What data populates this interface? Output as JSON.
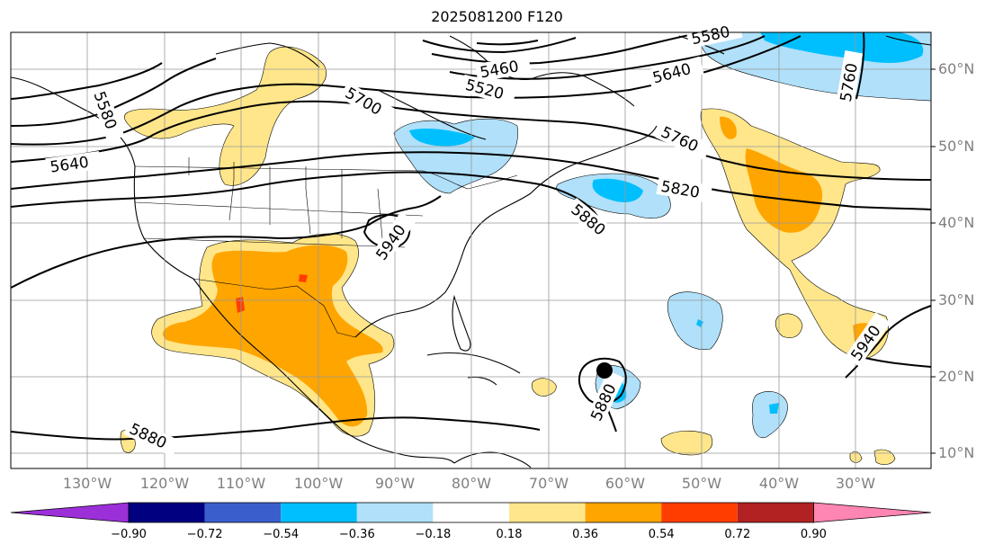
{
  "title": "2025081200 F120",
  "map": {
    "lon_range": [
      -140,
      20
    ],
    "lat_range": [
      8,
      65
    ],
    "lat_ticks": [
      {
        "value": 10,
        "label": "10°N"
      },
      {
        "value": 20,
        "label": "20°N"
      },
      {
        "value": 30,
        "label": "30°N"
      },
      {
        "value": 40,
        "label": "40°N"
      },
      {
        "value": 50,
        "label": "50°N"
      },
      {
        "value": 60,
        "label": "60°N"
      }
    ],
    "lon_ticks": [
      {
        "value": -130,
        "label": "130°W"
      },
      {
        "value": -120,
        "label": "120°W"
      },
      {
        "value": -110,
        "label": "110°W"
      },
      {
        "value": -100,
        "label": "100°W"
      },
      {
        "value": -90,
        "label": "90°W"
      },
      {
        "value": -80,
        "label": "80°W"
      },
      {
        "value": -70,
        "label": "70°W"
      },
      {
        "value": -60,
        "label": "60°W"
      },
      {
        "value": -50,
        "label": "50°W"
      },
      {
        "value": -40,
        "label": "40°W"
      },
      {
        "value": -30,
        "label": "30°W"
      }
    ],
    "contour_labels": [
      "5460",
      "5520",
      "5580",
      "5580",
      "5640",
      "5640",
      "5700",
      "5760",
      "5760",
      "5820",
      "5880",
      "5880",
      "5880",
      "5940",
      "5940"
    ],
    "storm_marker": {
      "lon": -62,
      "lat": 21
    }
  },
  "colorbar": {
    "ticks": [
      "−0.90",
      "−0.72",
      "−0.54",
      "−0.36",
      "−0.18",
      "0.18",
      "0.36",
      "0.54",
      "0.72",
      "0.90"
    ],
    "colors": [
      "#9b30d9",
      "#000080",
      "#3a5fcd",
      "#00bfff",
      "#b0e0fa",
      "#ffffff",
      "#ffe68a",
      "#ffa500",
      "#ff3d00",
      "#b22222",
      "#ff85b3"
    ]
  }
}
